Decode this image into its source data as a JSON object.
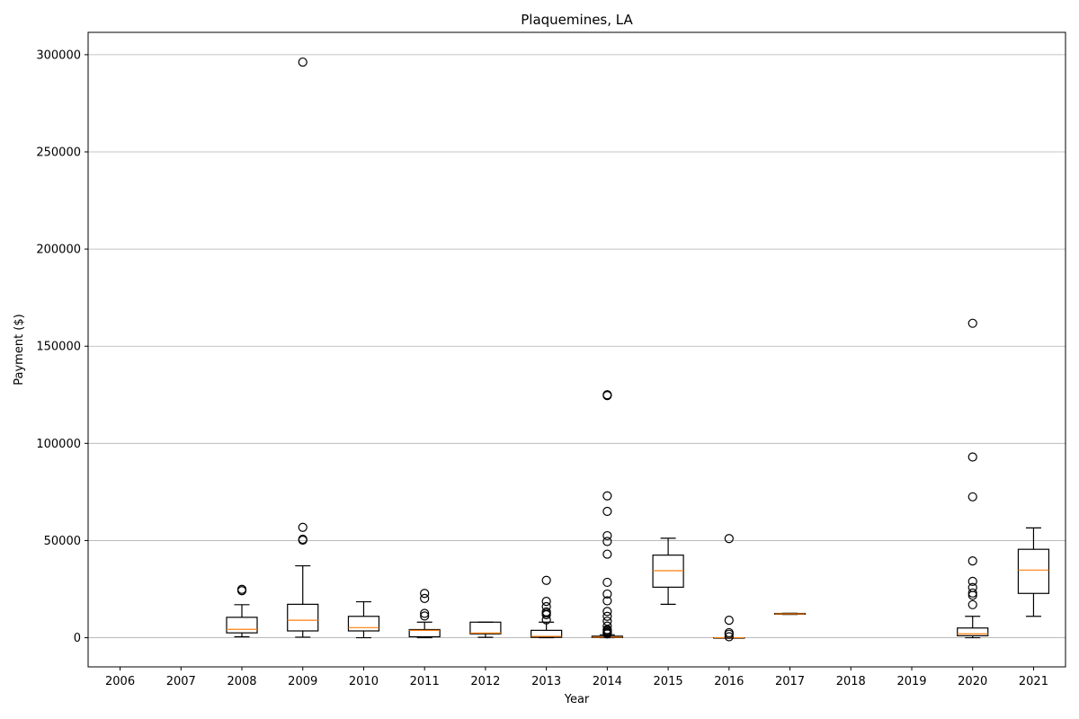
{
  "chart_data": {
    "type": "box",
    "title": "Plaquemines, LA",
    "xlabel": "Year",
    "ylabel": "Payment ($)",
    "ylim": [
      -15000,
      311500
    ],
    "yticks": [
      0,
      50000,
      100000,
      150000,
      200000,
      250000,
      300000
    ],
    "grid": "y-major",
    "categories": [
      "2006",
      "2007",
      "2008",
      "2009",
      "2010",
      "2011",
      "2012",
      "2013",
      "2014",
      "2015",
      "2016",
      "2017",
      "2018",
      "2019",
      "2020",
      "2021"
    ],
    "boxes": [
      {
        "year": "2006"
      },
      {
        "year": "2007"
      },
      {
        "year": "2008",
        "whisker_low": 500,
        "q1": 2500,
        "median": 4300,
        "q3": 10500,
        "whisker_high": 17000,
        "fliers": [
          24200,
          24900
        ]
      },
      {
        "year": "2009",
        "whisker_low": 300,
        "q1": 3500,
        "median": 9000,
        "q3": 17200,
        "whisker_high": 37000,
        "fliers": [
          50200,
          50700,
          56800,
          296200
        ]
      },
      {
        "year": "2010",
        "whisker_low": 0,
        "q1": 3500,
        "median": 5200,
        "q3": 11000,
        "whisker_high": 18500,
        "fliers": []
      },
      {
        "year": "2011",
        "whisker_low": 0,
        "q1": 500,
        "median": 3800,
        "q3": 4200,
        "whisker_high": 8000,
        "fliers": [
          11200,
          12500,
          20200,
          22800
        ]
      },
      {
        "year": "2012",
        "whisker_low": 200,
        "q1": 2000,
        "median": 2400,
        "q3": 8000,
        "whisker_high": 8000,
        "fliers": []
      },
      {
        "year": "2013",
        "whisker_low": 0,
        "q1": 200,
        "median": 700,
        "q3": 3800,
        "whisker_high": 8000,
        "fliers": [
          9200,
          11800,
          12600,
          13300,
          16000,
          18700,
          29500
        ]
      },
      {
        "year": "2014",
        "whisker_low": 0,
        "q1": 100,
        "median": 300,
        "q3": 800,
        "whisker_high": 1500,
        "fliers": [
          2000,
          2500,
          3000,
          3600,
          4200,
          6000,
          8500,
          11000,
          13500,
          19000,
          22500,
          28500,
          43000,
          49500,
          52500,
          65000,
          73000,
          124600,
          125000
        ]
      },
      {
        "year": "2015",
        "whisker_low": 17200,
        "q1": 26000,
        "median": 34500,
        "q3": 42500,
        "whisker_high": 51200,
        "fliers": []
      },
      {
        "year": "2016",
        "whisker_low": 0,
        "q1": 0,
        "median": 0,
        "q3": 0,
        "whisker_high": 0,
        "fliers": [
          500,
          1800,
          2600,
          9000,
          51000
        ]
      },
      {
        "year": "2017",
        "whisker_low": 12000,
        "q1": 12100,
        "median": 12300,
        "q3": 12500,
        "whisker_high": 12600,
        "fliers": []
      },
      {
        "year": "2018"
      },
      {
        "year": "2019"
      },
      {
        "year": "2020",
        "whisker_low": 0,
        "q1": 1000,
        "median": 2000,
        "q3": 5000,
        "whisker_high": 11000,
        "fliers": [
          17000,
          21800,
          23000,
          25800,
          29000,
          39500,
          72500,
          93000,
          161800
        ]
      },
      {
        "year": "2021",
        "whisker_low": 11000,
        "q1": 22800,
        "median": 34800,
        "q3": 45500,
        "whisker_high": 56500,
        "fliers": []
      }
    ]
  }
}
